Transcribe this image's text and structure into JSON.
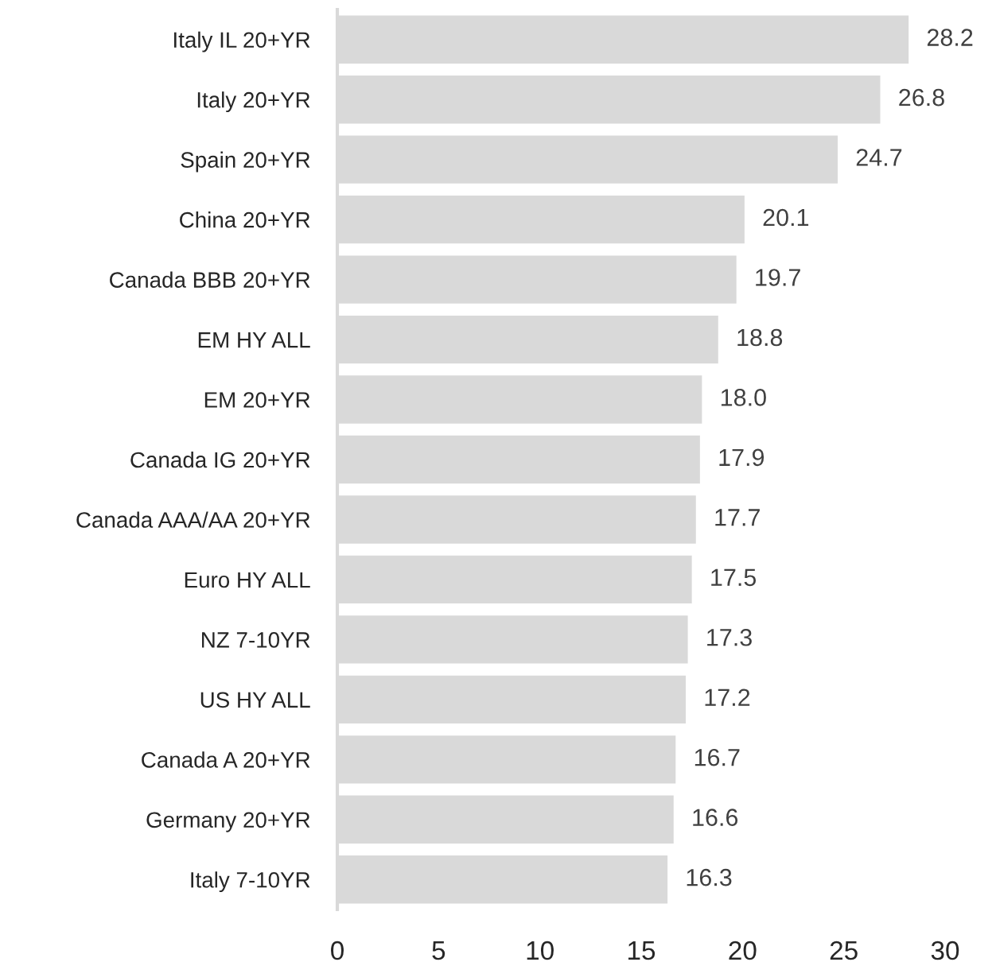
{
  "chart_data": {
    "type": "bar",
    "orientation": "horizontal",
    "categories": [
      "Italy IL 20+YR",
      "Italy 20+YR",
      "Spain 20+YR",
      "China 20+YR",
      "Canada BBB 20+YR",
      "EM HY ALL",
      "EM 20+YR",
      "Canada IG 20+YR",
      "Canada AAA/AA 20+YR",
      "Euro HY ALL",
      "NZ 7-10YR",
      "US HY ALL",
      "Canada A 20+YR",
      "Germany 20+YR",
      "Italy 7-10YR"
    ],
    "values": [
      28.2,
      26.8,
      24.7,
      20.1,
      19.7,
      18.8,
      18.0,
      17.9,
      17.7,
      17.5,
      17.3,
      17.2,
      16.7,
      16.6,
      16.3
    ],
    "value_labels": [
      "28.2",
      "26.8",
      "24.7",
      "20.1",
      "19.7",
      "18.8",
      "18.0",
      "17.9",
      "17.7",
      "17.5",
      "17.3",
      "17.2",
      "16.7",
      "16.6",
      "16.3"
    ],
    "color": "#d9d9d9",
    "xlim": [
      0,
      30
    ],
    "xticks": [
      0,
      5,
      10,
      15,
      20,
      25,
      30
    ],
    "grid": false,
    "legend": false
  }
}
